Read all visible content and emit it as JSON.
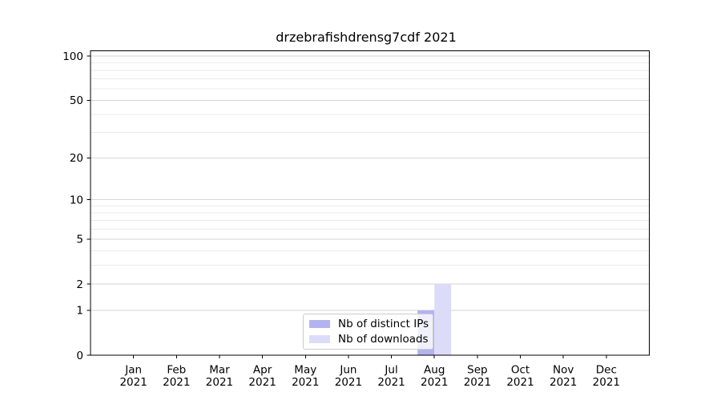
{
  "chart_data": {
    "type": "bar",
    "title": "drzebrafishdrensg7cdf 2021",
    "categories": [
      "Jan",
      "Feb",
      "Mar",
      "Apr",
      "May",
      "Jun",
      "Jul",
      "Aug",
      "Sep",
      "Oct",
      "Nov",
      "Dec"
    ],
    "x_year": "2021",
    "series": [
      {
        "name": "Nb of distinct IPs",
        "color": "#b3b3f1",
        "values": [
          0,
          0,
          0,
          0,
          0,
          0,
          0,
          1,
          0,
          0,
          0,
          0
        ]
      },
      {
        "name": "Nb of downloads",
        "color": "#dcdcf8",
        "values": [
          0,
          0,
          0,
          0,
          0,
          0,
          0,
          2,
          0,
          0,
          0,
          0
        ]
      }
    ],
    "yscale": "log1p",
    "ylim": [
      0,
      110
    ],
    "yticks": [
      0,
      1,
      2,
      5,
      10,
      20,
      50,
      100
    ],
    "minor_yticks": [
      3,
      4,
      6,
      7,
      8,
      9,
      30,
      40,
      60,
      70,
      80,
      90
    ],
    "grid": "horizontal",
    "legend_position": "lower center",
    "colors": {
      "major_grid": "#d6d6d6",
      "minor_grid": "#ebebeb",
      "spine": "#000000",
      "legend_border": "#cccccc"
    }
  }
}
